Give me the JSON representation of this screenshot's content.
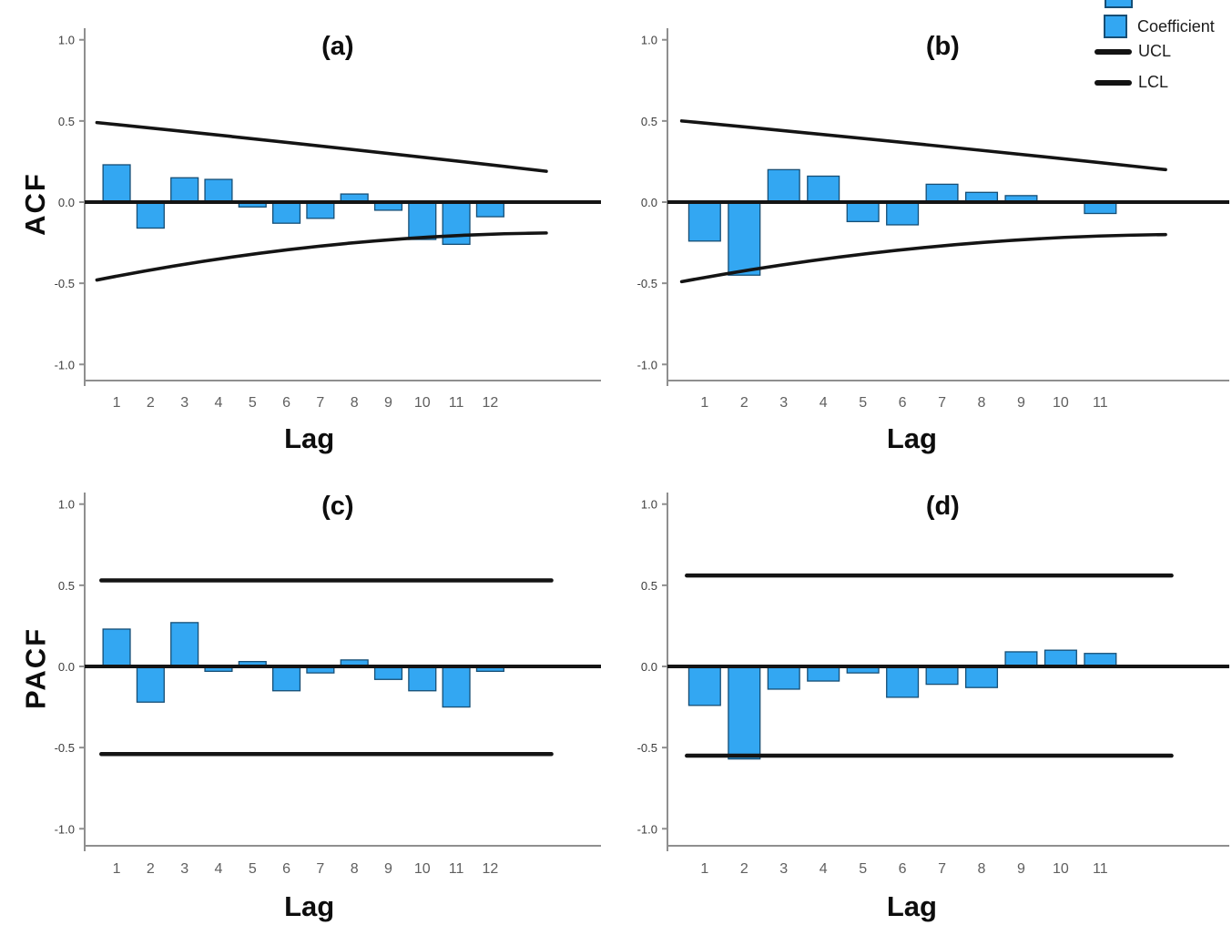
{
  "figure": {
    "background": "#ffffff",
    "bar_color": "#33A7F2",
    "bar_border_color": "#164e75",
    "ci_line_color": "#141414",
    "zero_line_color": "#141414",
    "axis_color": "#8f8f8f",
    "ytick_label_color": "#3c3c3c",
    "xtick_label_color": "#5f5f5f",
    "row_labels": [
      "ACF",
      "PACF"
    ],
    "x_axis_label": "Lag",
    "legend": {
      "position": "top-right",
      "items": [
        {
          "label": "Coefficient",
          "swatch": "square",
          "color": "#33A7F2"
        },
        {
          "label": "UCL",
          "swatch": "line",
          "color": "#131313"
        },
        {
          "label": "LCL",
          "swatch": "line",
          "color": "#131313"
        }
      ]
    }
  },
  "chart_data": [
    {
      "panel": "a",
      "type": "bar",
      "title": "(a)",
      "ylabel": "ACF",
      "xlabel": "Lag",
      "ylim": [
        -1.0,
        1.0
      ],
      "yticks": [
        1.0,
        0.5,
        0.0,
        -0.5,
        -1.0
      ],
      "grid": false,
      "categories": [
        1,
        2,
        3,
        4,
        5,
        6,
        7,
        8,
        9,
        10,
        11,
        12
      ],
      "values": [
        0.23,
        -0.16,
        0.15,
        0.14,
        -0.03,
        -0.13,
        -0.1,
        0.05,
        -0.05,
        -0.23,
        -0.26,
        -0.09
      ],
      "ucl": {
        "type": "curve",
        "start": 0.49,
        "end": 0.19
      },
      "lcl": {
        "type": "curve",
        "start": -0.48,
        "end": -0.19
      }
    },
    {
      "panel": "b",
      "type": "bar",
      "title": "(b)",
      "ylabel": "ACF",
      "xlabel": "Lag",
      "ylim": [
        -1.0,
        1.0
      ],
      "yticks": [
        1.0,
        0.5,
        0.0,
        -0.5,
        -1.0
      ],
      "grid": false,
      "categories": [
        1,
        2,
        3,
        4,
        5,
        6,
        7,
        8,
        9,
        10,
        11
      ],
      "values": [
        -0.24,
        -0.45,
        0.2,
        0.16,
        -0.12,
        -0.14,
        0.11,
        0.06,
        0.04,
        0.0,
        -0.07
      ],
      "ucl": {
        "type": "curve",
        "start": 0.5,
        "end": 0.2
      },
      "lcl": {
        "type": "curve",
        "start": -0.49,
        "end": -0.2
      }
    },
    {
      "panel": "c",
      "type": "bar",
      "title": "(c)",
      "ylabel": "PACF",
      "xlabel": "Lag",
      "ylim": [
        -1.0,
        1.0
      ],
      "yticks": [
        1.0,
        0.5,
        0.0,
        -0.5,
        -1.0
      ],
      "grid": false,
      "categories": [
        1,
        2,
        3,
        4,
        5,
        6,
        7,
        8,
        9,
        10,
        11,
        12
      ],
      "values": [
        0.23,
        -0.22,
        0.27,
        -0.03,
        0.03,
        -0.15,
        -0.04,
        0.04,
        -0.08,
        -0.15,
        -0.25,
        -0.03
      ],
      "ucl": {
        "type": "flat",
        "value": 0.53
      },
      "lcl": {
        "type": "flat",
        "value": -0.54
      }
    },
    {
      "panel": "d",
      "type": "bar",
      "title": "(d)",
      "ylabel": "PACF",
      "xlabel": "Lag",
      "ylim": [
        -1.0,
        1.0
      ],
      "yticks": [
        1.0,
        0.5,
        0.0,
        -0.5,
        -1.0
      ],
      "grid": false,
      "categories": [
        1,
        2,
        3,
        4,
        5,
        6,
        7,
        8,
        9,
        10,
        11
      ],
      "values": [
        -0.24,
        -0.57,
        -0.14,
        -0.09,
        -0.04,
        -0.19,
        -0.11,
        -0.13,
        0.09,
        0.1,
        0.08
      ],
      "ucl": {
        "type": "flat",
        "value": 0.56
      },
      "lcl": {
        "type": "flat",
        "value": -0.55
      }
    }
  ]
}
